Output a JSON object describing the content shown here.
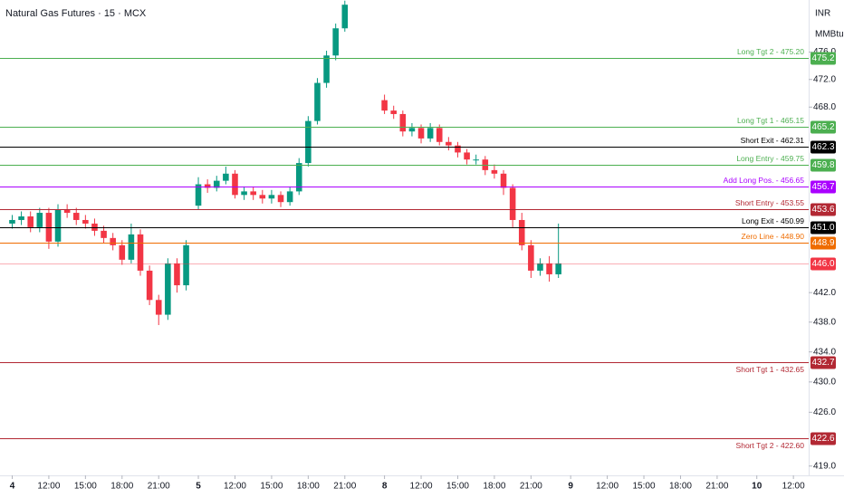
{
  "chart_data": {
    "type": "candlestick",
    "title": "Natural Gas Futures · 15 · MCX",
    "currency": "INR",
    "unit": "MMBtu",
    "log_scale": true,
    "up_color": "#089981",
    "down_color": "#f23645",
    "xlim": [
      -4,
      261
    ],
    "ylim": [
      417.8,
      483.7
    ],
    "xticks": [
      {
        "value": 0,
        "label": "4"
      },
      {
        "value": 12,
        "label": "12:00"
      },
      {
        "value": 24,
        "label": "15:00"
      },
      {
        "value": 36,
        "label": "18:00"
      },
      {
        "value": 48,
        "label": "21:00"
      },
      {
        "value": 61,
        "label": "5"
      },
      {
        "value": 73,
        "label": "12:00"
      },
      {
        "value": 85,
        "label": "15:00"
      },
      {
        "value": 97,
        "label": "18:00"
      },
      {
        "value": 109,
        "label": "21:00"
      },
      {
        "value": 122,
        "label": "8"
      },
      {
        "value": 134,
        "label": "12:00"
      },
      {
        "value": 146,
        "label": "15:00"
      },
      {
        "value": 158,
        "label": "18:00"
      },
      {
        "value": 170,
        "label": "21:00"
      },
      {
        "value": 183,
        "label": "9"
      },
      {
        "value": 195,
        "label": "12:00"
      },
      {
        "value": 207,
        "label": "15:00"
      },
      {
        "value": 219,
        "label": "18:00"
      },
      {
        "value": 231,
        "label": "21:00"
      },
      {
        "value": 244,
        "label": "10"
      },
      {
        "value": 256,
        "label": "12:00"
      }
    ],
    "yticks": [
      {
        "value": 476,
        "label": "476.0"
      },
      {
        "value": 472,
        "label": "472.0"
      },
      {
        "value": 468,
        "label": "468.0"
      },
      {
        "value": 442,
        "label": "442.0"
      },
      {
        "value": 438,
        "label": "438.0"
      },
      {
        "value": 434,
        "label": "434.0"
      },
      {
        "value": 430,
        "label": "430.0"
      },
      {
        "value": 426,
        "label": "426.0"
      },
      {
        "value": 419,
        "label": "419.0"
      }
    ],
    "x": [
      0,
      3,
      6,
      9,
      12,
      15,
      18,
      21,
      24,
      27,
      30,
      33,
      36,
      39,
      42,
      45,
      48,
      51,
      54,
      57,
      61,
      64,
      67,
      70,
      73,
      76,
      79,
      82,
      85,
      88,
      91,
      94,
      97,
      100,
      103,
      106,
      109,
      122,
      125,
      128,
      131,
      134,
      137,
      140,
      143,
      146,
      149,
      152,
      155,
      158,
      161,
      164,
      167,
      170,
      173,
      176,
      179
    ],
    "open": [
      451.5,
      452.0,
      452.5,
      451.0,
      453.0,
      449.0,
      453.5,
      453.0,
      452.0,
      451.5,
      450.5,
      449.5,
      448.5,
      446.5,
      450.0,
      445.0,
      441.0,
      439.0,
      446.0,
      443.0,
      454.0,
      457.0,
      456.5,
      457.5,
      458.5,
      455.5,
      456.0,
      455.5,
      455.0,
      455.5,
      454.5,
      456.0,
      460.0,
      466.0,
      471.5,
      475.5,
      479.5,
      469.0,
      467.5,
      467.0,
      464.5,
      465.0,
      463.5,
      465.0,
      463.0,
      462.5,
      461.5,
      460.5,
      460.5,
      459.0,
      458.5,
      456.5,
      452.0,
      448.5,
      445.0,
      446.0,
      444.5
    ],
    "high": [
      452.7,
      453.2,
      453.2,
      453.7,
      453.7,
      454.2,
      454.2,
      453.7,
      452.7,
      452.2,
      451.2,
      450.2,
      449.2,
      451.5,
      450.7,
      445.7,
      441.7,
      446.7,
      446.7,
      449.2,
      458.0,
      457.7,
      458.2,
      459.5,
      459.0,
      456.7,
      456.7,
      456.2,
      456.2,
      456.0,
      456.7,
      460.7,
      466.7,
      472.2,
      476.2,
      480.2,
      483.6,
      469.8,
      468.2,
      467.5,
      465.7,
      465.5,
      465.7,
      465.5,
      463.7,
      463.0,
      462.0,
      461.2,
      461.0,
      459.8,
      459.0,
      457.0,
      453.0,
      449.2,
      446.7,
      447.0,
      451.5
    ],
    "low": [
      450.8,
      451.3,
      450.3,
      450.3,
      448.0,
      448.3,
      452.3,
      451.3,
      450.8,
      449.8,
      448.8,
      447.8,
      445.8,
      446.0,
      444.3,
      440.3,
      437.6,
      438.3,
      442.0,
      442.3,
      453.5,
      455.8,
      456.0,
      457.0,
      455.0,
      454.8,
      454.8,
      454.3,
      454.3,
      453.8,
      454.0,
      455.5,
      459.5,
      465.5,
      470.8,
      474.8,
      479.0,
      467.0,
      466.3,
      463.8,
      463.8,
      462.8,
      463.0,
      462.5,
      461.8,
      460.8,
      459.8,
      459.8,
      458.3,
      457.8,
      455.5,
      451.0,
      447.8,
      444.0,
      444.3,
      443.5,
      444.0
    ],
    "close": [
      452.0,
      452.5,
      451.0,
      453.0,
      449.0,
      453.5,
      453.0,
      452.0,
      451.5,
      450.5,
      449.5,
      448.5,
      446.5,
      450.0,
      445.0,
      441.0,
      439.0,
      446.0,
      443.0,
      448.5,
      457.0,
      456.5,
      457.5,
      458.5,
      455.5,
      456.0,
      455.5,
      455.0,
      455.5,
      454.5,
      456.0,
      460.0,
      466.0,
      471.5,
      475.5,
      479.5,
      483.0,
      467.5,
      467.0,
      464.5,
      465.0,
      463.5,
      465.0,
      463.0,
      462.5,
      461.5,
      460.5,
      460.5,
      459.0,
      458.5,
      456.5,
      452.0,
      448.5,
      445.0,
      446.0,
      444.5,
      446.0
    ],
    "levels": [
      {
        "name": "Long Tgt 2 - 475.20",
        "value": 475.2,
        "badge": "475.2",
        "color": "#4caf50"
      },
      {
        "name": "Long Tgt 1 - 465.15",
        "value": 465.15,
        "badge": "465.2",
        "color": "#4caf50"
      },
      {
        "name": "Short Exit - 462.31",
        "value": 462.31,
        "badge": "462.3",
        "color": "#000000"
      },
      {
        "name": "Long Entry - 459.75",
        "value": 459.75,
        "badge": "459.8",
        "color": "#4caf50"
      },
      {
        "name": "Add Long Pos. - 456.65",
        "value": 456.65,
        "badge": "456.7",
        "color": "#aa00ff"
      },
      {
        "name": "Short Entry - 453.55",
        "value": 453.55,
        "badge": "453.6",
        "color": "#b22833"
      },
      {
        "name": "Long Exit - 450.99",
        "value": 450.99,
        "badge": "451.0",
        "color": "#000000"
      },
      {
        "name": "Zero Line - 448.90",
        "value": 448.9,
        "badge": "448.9",
        "color": "#ef6c00"
      },
      {
        "name": "Short Tgt 1 - 432.65",
        "value": 432.65,
        "badge": "432.7",
        "color": "#b22833"
      },
      {
        "name": "Short Tgt 2 - 422.60",
        "value": 422.6,
        "badge": "422.6",
        "color": "#b22833"
      }
    ],
    "last_price": {
      "value": 446.0,
      "label": "446.0",
      "color": "#f23645"
    }
  }
}
